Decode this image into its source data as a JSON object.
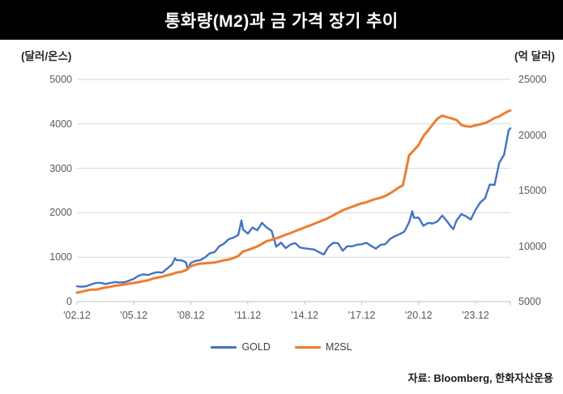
{
  "chart_data": {
    "type": "line",
    "title": "통화량(M2)과 금 가격 장기 추이",
    "source": "자료: Bloomberg, 한화자산운용",
    "grid": "horizontal",
    "legend_position": "bottom-center",
    "left_axis": {
      "unit": "(달러/온스)",
      "range": [
        0,
        5000
      ],
      "ticks": [
        0,
        1000,
        2000,
        3000,
        4000,
        5000
      ]
    },
    "right_axis": {
      "unit": "(억 달러)",
      "range": [
        5000,
        25000
      ],
      "ticks": [
        5000,
        10000,
        15000,
        20000,
        25000
      ]
    },
    "x_axis": {
      "start_label_period": "2002.12",
      "max_month": 274,
      "tick_months": [
        0,
        36,
        72,
        108,
        144,
        180,
        216,
        252
      ],
      "tick_labels": [
        "'02.12",
        "'05.12",
        "'08.12",
        "'11.12",
        "'14.12",
        "'17.12",
        "'20.12",
        "'23.12"
      ]
    },
    "series": [
      {
        "name": "GOLD",
        "axis": "left",
        "color": "#4472c4",
        "stroke_width": 2.4,
        "points": [
          [
            0,
            343
          ],
          [
            3,
            334
          ],
          [
            6,
            346
          ],
          [
            9,
            386
          ],
          [
            12,
            417
          ],
          [
            15,
            424
          ],
          [
            18,
            395
          ],
          [
            21,
            420
          ],
          [
            24,
            438
          ],
          [
            27,
            428
          ],
          [
            30,
            437
          ],
          [
            33,
            473
          ],
          [
            36,
            513
          ],
          [
            39,
            582
          ],
          [
            42,
            613
          ],
          [
            45,
            599
          ],
          [
            48,
            636
          ],
          [
            51,
            663
          ],
          [
            54,
            651
          ],
          [
            57,
            743
          ],
          [
            60,
            834
          ],
          [
            62,
            975
          ],
          [
            63,
            933
          ],
          [
            66,
            930
          ],
          [
            69,
            884
          ],
          [
            70,
            724
          ],
          [
            72,
            870
          ],
          [
            75,
            916
          ],
          [
            78,
            934
          ],
          [
            81,
            996
          ],
          [
            84,
            1088
          ],
          [
            87,
            1113
          ],
          [
            90,
            1244
          ],
          [
            93,
            1307
          ],
          [
            96,
            1406
          ],
          [
            99,
            1439
          ],
          [
            102,
            1500
          ],
          [
            104,
            1826
          ],
          [
            105,
            1620
          ],
          [
            108,
            1531
          ],
          [
            111,
            1668
          ],
          [
            114,
            1604
          ],
          [
            117,
            1772
          ],
          [
            120,
            1664
          ],
          [
            123,
            1595
          ],
          [
            126,
            1235
          ],
          [
            129,
            1327
          ],
          [
            132,
            1202
          ],
          [
            135,
            1284
          ],
          [
            138,
            1315
          ],
          [
            141,
            1217
          ],
          [
            144,
            1199
          ],
          [
            147,
            1184
          ],
          [
            150,
            1172
          ],
          [
            153,
            1114
          ],
          [
            156,
            1060
          ],
          [
            159,
            1233
          ],
          [
            162,
            1321
          ],
          [
            165,
            1316
          ],
          [
            168,
            1146
          ],
          [
            171,
            1249
          ],
          [
            174,
            1242
          ],
          [
            177,
            1280
          ],
          [
            180,
            1291
          ],
          [
            183,
            1323
          ],
          [
            186,
            1253
          ],
          [
            189,
            1192
          ],
          [
            192,
            1279
          ],
          [
            195,
            1292
          ],
          [
            198,
            1410
          ],
          [
            201,
            1472
          ],
          [
            204,
            1517
          ],
          [
            207,
            1577
          ],
          [
            210,
            1781
          ],
          [
            212,
            2035
          ],
          [
            213,
            1886
          ],
          [
            216,
            1888
          ],
          [
            219,
            1708
          ],
          [
            222,
            1770
          ],
          [
            225,
            1757
          ],
          [
            228,
            1806
          ],
          [
            231,
            1937
          ],
          [
            234,
            1807
          ],
          [
            237,
            1660
          ],
          [
            238,
            1634
          ],
          [
            240,
            1824
          ],
          [
            243,
            1969
          ],
          [
            246,
            1919
          ],
          [
            249,
            1848
          ],
          [
            252,
            2063
          ],
          [
            255,
            2230
          ],
          [
            258,
            2327
          ],
          [
            261,
            2635
          ],
          [
            264,
            2625
          ],
          [
            267,
            3124
          ],
          [
            270,
            3303
          ],
          [
            273,
            3859
          ],
          [
            274,
            3900
          ]
        ]
      },
      {
        "name": "M2SL",
        "axis": "right",
        "color": "#ed7d31",
        "stroke_width": 3,
        "points": [
          [
            0,
            5800
          ],
          [
            3,
            5890
          ],
          [
            6,
            5990
          ],
          [
            9,
            6080
          ],
          [
            12,
            6070
          ],
          [
            15,
            6170
          ],
          [
            18,
            6270
          ],
          [
            21,
            6330
          ],
          [
            24,
            6420
          ],
          [
            27,
            6470
          ],
          [
            30,
            6540
          ],
          [
            33,
            6630
          ],
          [
            36,
            6680
          ],
          [
            39,
            6750
          ],
          [
            42,
            6840
          ],
          [
            45,
            6920
          ],
          [
            48,
            7070
          ],
          [
            51,
            7150
          ],
          [
            54,
            7250
          ],
          [
            57,
            7370
          ],
          [
            60,
            7470
          ],
          [
            63,
            7620
          ],
          [
            66,
            7680
          ],
          [
            69,
            7830
          ],
          [
            72,
            8190
          ],
          [
            75,
            8330
          ],
          [
            78,
            8420
          ],
          [
            81,
            8450
          ],
          [
            84,
            8490
          ],
          [
            87,
            8520
          ],
          [
            90,
            8610
          ],
          [
            93,
            8720
          ],
          [
            96,
            8790
          ],
          [
            99,
            8920
          ],
          [
            102,
            9110
          ],
          [
            105,
            9510
          ],
          [
            108,
            9650
          ],
          [
            111,
            9800
          ],
          [
            114,
            9960
          ],
          [
            117,
            10200
          ],
          [
            120,
            10450
          ],
          [
            123,
            10560
          ],
          [
            126,
            10690
          ],
          [
            129,
            10850
          ],
          [
            132,
            11020
          ],
          [
            135,
            11170
          ],
          [
            138,
            11350
          ],
          [
            141,
            11500
          ],
          [
            144,
            11680
          ],
          [
            147,
            11830
          ],
          [
            150,
            12010
          ],
          [
            153,
            12180
          ],
          [
            156,
            12340
          ],
          [
            159,
            12540
          ],
          [
            162,
            12760
          ],
          [
            165,
            13000
          ],
          [
            168,
            13210
          ],
          [
            171,
            13390
          ],
          [
            174,
            13540
          ],
          [
            177,
            13700
          ],
          [
            180,
            13850
          ],
          [
            183,
            13940
          ],
          [
            186,
            14110
          ],
          [
            189,
            14240
          ],
          [
            192,
            14360
          ],
          [
            195,
            14510
          ],
          [
            198,
            14750
          ],
          [
            201,
            15030
          ],
          [
            204,
            15320
          ],
          [
            206,
            15450
          ],
          [
            207,
            16080
          ],
          [
            210,
            18160
          ],
          [
            213,
            18620
          ],
          [
            216,
            19110
          ],
          [
            219,
            19890
          ],
          [
            222,
            20400
          ],
          [
            225,
            20960
          ],
          [
            228,
            21490
          ],
          [
            231,
            21740
          ],
          [
            234,
            21600
          ],
          [
            237,
            21480
          ],
          [
            240,
            21350
          ],
          [
            243,
            20900
          ],
          [
            246,
            20780
          ],
          [
            249,
            20750
          ],
          [
            252,
            20870
          ],
          [
            255,
            20960
          ],
          [
            258,
            21080
          ],
          [
            261,
            21270
          ],
          [
            264,
            21530
          ],
          [
            267,
            21670
          ],
          [
            270,
            21940
          ],
          [
            273,
            22150
          ],
          [
            274,
            22200
          ]
        ]
      }
    ],
    "colors": {
      "gridline": "#d9d9d9",
      "axis_line": "#bfbfbf",
      "tick_text": "#595959",
      "title_bg": "#000000",
      "title_text": "#ffffff"
    }
  }
}
